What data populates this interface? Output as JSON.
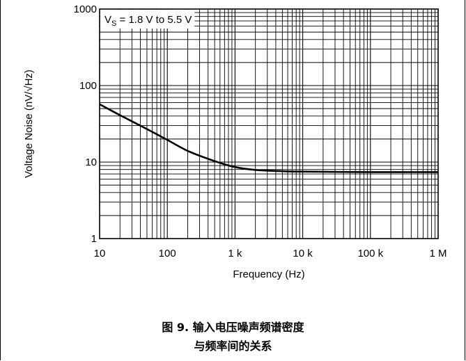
{
  "chart_data": {
    "type": "line",
    "xlabel": "Frequency (Hz)",
    "ylabel": "Voltage Noise (nV/√Hz)",
    "xscale": "log",
    "yscale": "log",
    "xlim": [
      10,
      1000000
    ],
    "ylim": [
      1,
      1000
    ],
    "grid": true,
    "x_ticks": [
      "10",
      "100",
      "1 k",
      "10 k",
      "100 k",
      "1 M"
    ],
    "y_ticks": [
      "1",
      "10",
      "100",
      "1000"
    ],
    "annotation": {
      "main": "V",
      "sub": "S",
      "rest": " = 1.8 V to 5.5 V"
    },
    "series": [
      {
        "color": "#000000",
        "x": [
          10,
          20,
          50,
          100,
          200,
          500,
          1000,
          2000,
          5000,
          10000,
          100000,
          1000000
        ],
        "y": [
          57,
          41,
          27,
          19.5,
          14,
          10.3,
          8.6,
          7.9,
          7.6,
          7.5,
          7.4,
          7.4
        ]
      }
    ]
  },
  "caption": {
    "line1": "图 9. 输入电压噪声频谱密度",
    "line2": "与频率间的关系"
  }
}
